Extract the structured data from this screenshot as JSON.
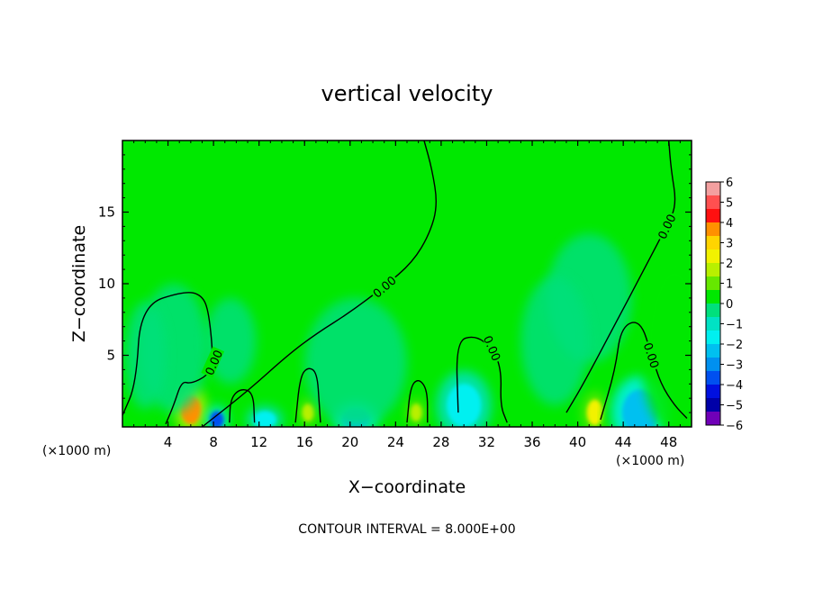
{
  "chart_data": {
    "type": "heatmap",
    "title": "vertical velocity",
    "xlabel": "X−coordinate",
    "ylabel": "Z−coordinate",
    "x_unit_left": "(×1000 m)",
    "x_unit_right": "(×1000 m)",
    "footer": "CONTOUR INTERVAL = 8.000E+00",
    "xlim": [
      0,
      50
    ],
    "ylim": [
      0,
      20
    ],
    "x_ticks": [
      4,
      8,
      12,
      16,
      20,
      24,
      28,
      32,
      36,
      40,
      44,
      48
    ],
    "y_ticks": [
      5,
      10,
      15
    ],
    "grid": false,
    "colorbar": {
      "levels": [
        6,
        5,
        4,
        3,
        2,
        1,
        0,
        -1,
        -2,
        -3,
        -4,
        -5,
        -6
      ],
      "tick_labels": [
        "6",
        "5",
        "4",
        "3",
        "2",
        "1",
        "0",
        "−1",
        "−2",
        "−3",
        "−4",
        "−5",
        "−6"
      ],
      "colors": [
        "#f3a0a0",
        "#ff5050",
        "#ff1010",
        "#ff9000",
        "#ffd400",
        "#f2f200",
        "#b8f000",
        "#66e800",
        "#00e800",
        "#00e07c",
        "#00e2c4",
        "#00f0f0",
        "#00c0f0",
        "#0090f0",
        "#0050f0",
        "#0010e0",
        "#0000a8",
        "#7000b8"
      ],
      "placement": "right"
    },
    "background_color": "#00e800",
    "contour_label": "0.00",
    "cells": [
      {
        "x": 6,
        "z": 1.2,
        "w": 0.9,
        "h": 1.0,
        "value": 4
      },
      {
        "x": 41.5,
        "z": 1.0,
        "w": 0.7,
        "h": 0.9,
        "value": 3
      },
      {
        "x": 16.3,
        "z": 1.0,
        "w": 0.5,
        "h": 0.6,
        "value": 2
      },
      {
        "x": 25.8,
        "z": 1.0,
        "w": 0.5,
        "h": 0.6,
        "value": 2
      },
      {
        "x": 10,
        "z": 0.8,
        "w": 0.5,
        "h": 0.6,
        "value": 1
      },
      {
        "x": 33,
        "z": 0.8,
        "w": 0.5,
        "h": 0.6,
        "value": 1
      },
      {
        "x": 43,
        "z": 0.8,
        "w": 0.4,
        "h": 0.5,
        "value": 1
      },
      {
        "x": 8.3,
        "z": 0.5,
        "w": 0.6,
        "h": 0.6,
        "value": -3
      },
      {
        "x": 20.5,
        "z": 0.6,
        "w": 1.2,
        "h": 0.7,
        "value": -2
      },
      {
        "x": 45.5,
        "z": 1.0,
        "w": 1.6,
        "h": 1.6,
        "value": -2
      },
      {
        "x": 12.5,
        "z": 0.5,
        "w": 1.0,
        "h": 0.6,
        "value": -1
      },
      {
        "x": 30,
        "z": 1.5,
        "w": 1.5,
        "h": 1.5,
        "value": -1
      },
      {
        "x": 4.5,
        "z": 5.5,
        "w": 2.0,
        "h": 3.0,
        "value": -0.5
      },
      {
        "x": 9.5,
        "z": 6.0,
        "w": 1.5,
        "h": 2.0,
        "value": 0.4
      },
      {
        "x": 2.0,
        "z": 5.0,
        "w": 1.2,
        "h": 2.5,
        "value": 0.4
      },
      {
        "x": 20.5,
        "z": 4.5,
        "w": 3.0,
        "h": 3.0,
        "value": -0.5
      },
      {
        "x": 41.0,
        "z": 9.0,
        "w": 2.5,
        "h": 3.0,
        "value": -0.5
      },
      {
        "x": 38.0,
        "z": 6.0,
        "w": 2.0,
        "h": 3.0,
        "value": 0.4
      },
      {
        "x": 48.5,
        "z": 5.5,
        "w": 2.0,
        "h": 4.0,
        "value": 0.8
      }
    ],
    "contours": [
      {
        "name": "updraft-envelope",
        "label": "0.00",
        "points": [
          [
            0,
            0.8
          ],
          [
            1.2,
            3
          ],
          [
            1.6,
            8.5
          ],
          [
            5.5,
            9.5
          ],
          [
            7,
            9.2
          ],
          [
            7.6,
            8
          ],
          [
            8,
            4.5
          ],
          [
            7.5,
            3.6
          ],
          [
            6,
            3
          ],
          [
            5.2,
            3.2
          ],
          [
            4.5,
            1.5
          ],
          [
            3.8,
            0.2
          ]
        ]
      },
      {
        "name": "central-zero-line",
        "label": "0.00",
        "points": [
          [
            7,
            0
          ],
          [
            11,
            2.5
          ],
          [
            14.5,
            5
          ],
          [
            17,
            6.5
          ],
          [
            20,
            8
          ],
          [
            23,
            9.8
          ],
          [
            25.5,
            11.5
          ],
          [
            27,
            13.5
          ],
          [
            27.7,
            15.5
          ],
          [
            27.2,
            18
          ],
          [
            26.5,
            20
          ]
        ]
      },
      {
        "name": "right-zero-line",
        "label": "0.00",
        "points": [
          [
            39,
            1
          ],
          [
            40.5,
            3
          ],
          [
            43.5,
            7.5
          ],
          [
            45.5,
            10.5
          ],
          [
            47.8,
            14
          ],
          [
            48.7,
            15.5
          ],
          [
            48.2,
            18
          ],
          [
            48.0,
            20
          ]
        ]
      },
      {
        "name": "right-lower-loop",
        "label": "0.00",
        "points": [
          [
            42,
            0.5
          ],
          [
            43.3,
            4
          ],
          [
            43.8,
            7
          ],
          [
            45.5,
            7.5
          ],
          [
            46.5,
            5
          ],
          [
            47.3,
            3
          ],
          [
            48.5,
            1.5
          ],
          [
            49.6,
            0.6
          ]
        ]
      },
      {
        "name": "cell-16",
        "label": "",
        "points": [
          [
            15.2,
            0.3
          ],
          [
            15.6,
            3.5
          ],
          [
            16.3,
            4.2
          ],
          [
            17.1,
            3.8
          ],
          [
            17.3,
            1.5
          ],
          [
            17.4,
            0.3
          ]
        ]
      },
      {
        "name": "cell-26",
        "label": "",
        "points": [
          [
            25.0,
            0.3
          ],
          [
            25.3,
            2.8
          ],
          [
            26,
            3.4
          ],
          [
            26.8,
            2.6
          ],
          [
            26.8,
            0.3
          ]
        ]
      },
      {
        "name": "cell-10",
        "label": "",
        "points": [
          [
            9.4,
            0.3
          ],
          [
            9.5,
            2
          ],
          [
            10.4,
            2.7
          ],
          [
            11.5,
            2.4
          ],
          [
            11.6,
            0.3
          ]
        ]
      },
      {
        "name": "cell-31",
        "label": "0.00",
        "points": [
          [
            29.5,
            1
          ],
          [
            29.3,
            6
          ],
          [
            31,
            6.4
          ],
          [
            32.5,
            5.5
          ],
          [
            33.3,
            4
          ],
          [
            33.2,
            1.5
          ],
          [
            33.8,
            0.3
          ]
        ]
      }
    ]
  }
}
